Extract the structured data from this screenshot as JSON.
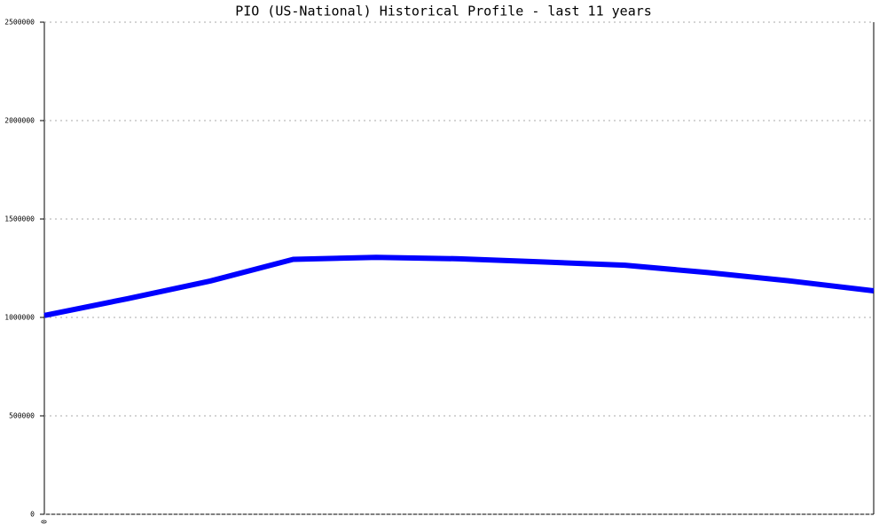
{
  "chart_data": {
    "type": "line",
    "title": "PIO (US-National) Historical Profile - last 11 years",
    "categories": [
      "0",
      null,
      null,
      null,
      null,
      null,
      null,
      null,
      null,
      null,
      null
    ],
    "series": [
      {
        "color": "#0000ff",
        "values": [
          1010000,
          1095000,
          1185000,
          1295000,
          1305000,
          1298000,
          1282000,
          1265000,
          1228000,
          1185000,
          1135000
        ]
      }
    ],
    "ylim": [
      0,
      2500000
    ],
    "yticks": [
      0,
      500000,
      1000000,
      1500000,
      2000000,
      2500000
    ],
    "grid": true
  }
}
